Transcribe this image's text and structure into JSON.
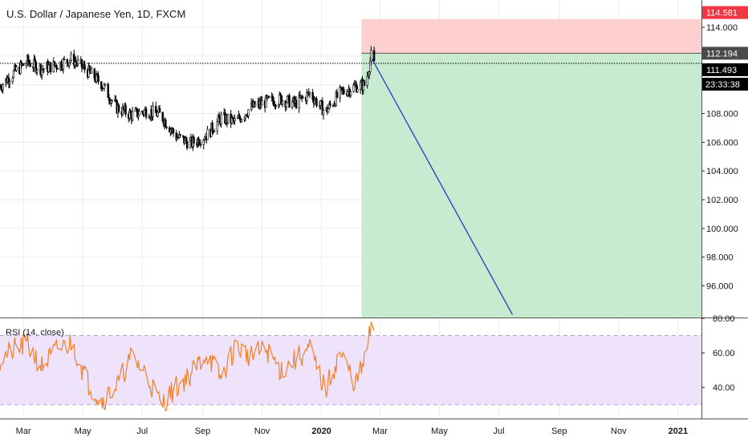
{
  "header": {
    "title": "U.S. Dollar / Japanese Yen, 1D, FXCM"
  },
  "colors": {
    "candle": "#000000",
    "target_zone": "#c8ead0",
    "stop_zone": "#fdcfcf",
    "projection_line": "#1f3fc4",
    "rsi_line": "#f0822d",
    "rsi_band": "#efe3fb",
    "rsi_level": "#b89fd9",
    "stop_tag": "#f23645",
    "grid": "#ececec"
  },
  "price_tags": {
    "stop": "114.581",
    "entry": "112.194",
    "last": "111.493",
    "countdown": "23:33:38"
  },
  "rsi": {
    "label": "RSI (14, close)"
  },
  "chart_data": [
    {
      "type": "candlestick",
      "title": "U.S. Dollar / Japanese Yen, 1D, FXCM",
      "x_ticks": [
        "Mar",
        "May",
        "Jul",
        "Sep",
        "Nov",
        "2020",
        "Mar",
        "May",
        "Jul",
        "Sep",
        "Nov",
        "2021"
      ],
      "x_range": [
        "2019-02-05",
        "2021-01-25"
      ],
      "y_ticks": [
        "114.000",
        "112.000",
        "110.000",
        "108.000",
        "106.000",
        "104.000",
        "102.000",
        "100.000",
        "98.000",
        "96.000"
      ],
      "ylim": [
        93.8,
        115.9
      ],
      "grid": true,
      "close_series": {
        "x": [
          "2019-02-05",
          "2019-02-20",
          "2019-03-05",
          "2019-03-20",
          "2019-04-05",
          "2019-04-20",
          "2019-05-05",
          "2019-05-20",
          "2019-06-05",
          "2019-06-20",
          "2019-07-05",
          "2019-07-20",
          "2019-08-05",
          "2019-08-20",
          "2019-09-05",
          "2019-09-20",
          "2019-10-05",
          "2019-10-20",
          "2019-11-05",
          "2019-11-20",
          "2019-12-05",
          "2019-12-20",
          "2020-01-05",
          "2020-01-20",
          "2020-02-05",
          "2020-02-15",
          "2020-02-21",
          "2020-02-24"
        ],
        "y": [
          109.9,
          110.9,
          111.6,
          111.1,
          111.4,
          111.8,
          111.0,
          110.1,
          108.4,
          107.9,
          108.2,
          107.9,
          106.4,
          105.9,
          106.5,
          107.7,
          107.4,
          108.4,
          108.8,
          109.0,
          108.7,
          109.4,
          108.1,
          109.4,
          109.9,
          110.0,
          112.0,
          111.4
        ]
      },
      "position": {
        "entry": 112.194,
        "stop": 114.581,
        "target": 93.8,
        "start": "2020-02-11",
        "end": "2021-01-25",
        "projection": {
          "from": {
            "x": "2020-02-21",
            "y": 111.9
          },
          "to": {
            "x": "2020-07-15",
            "y": 94.0
          }
        }
      },
      "last_price": 111.493,
      "countdown": "23:33:38"
    },
    {
      "type": "line",
      "title": "RSI (14, close)",
      "y_ticks": [
        "80.00",
        "60.00",
        "40.00"
      ],
      "ylim": [
        22,
        80
      ],
      "levels": [
        70,
        30
      ],
      "series": [
        {
          "name": "RSI (14, close)",
          "x": [
            "2019-02-05",
            "2019-02-20",
            "2019-03-05",
            "2019-03-20",
            "2019-04-05",
            "2019-04-20",
            "2019-05-05",
            "2019-05-20",
            "2019-06-05",
            "2019-06-20",
            "2019-07-05",
            "2019-07-20",
            "2019-08-05",
            "2019-08-20",
            "2019-09-05",
            "2019-09-20",
            "2019-10-05",
            "2019-10-20",
            "2019-11-05",
            "2019-11-20",
            "2019-12-05",
            "2019-12-20",
            "2020-01-05",
            "2020-01-20",
            "2020-02-05",
            "2020-02-15",
            "2020-02-21",
            "2020-02-24"
          ],
          "values": [
            56,
            62,
            65,
            52,
            62,
            66,
            44,
            32,
            41,
            58,
            48,
            30,
            40,
            48,
            60,
            45,
            64,
            58,
            62,
            50,
            56,
            62,
            38,
            60,
            42,
            56,
            76,
            67
          ]
        }
      ]
    }
  ]
}
